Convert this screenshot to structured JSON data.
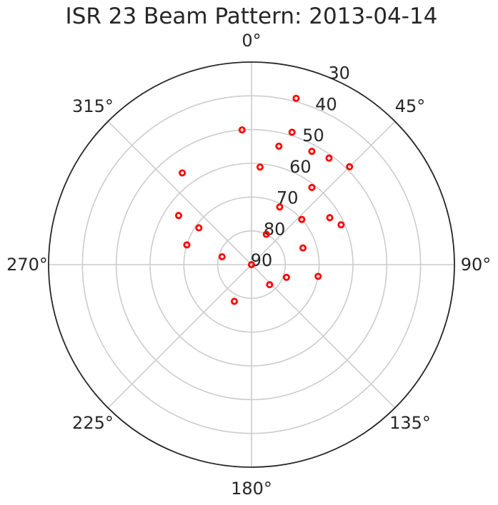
{
  "chart_data": {
    "type": "scatter",
    "projection": "polar",
    "title": "ISR 23 Beam Pattern: 2013-04-14",
    "theta_direction": "clockwise",
    "theta_zero": "top",
    "radial_axis": "elevation (90 at center, 30 at edge)",
    "rlim": [
      90,
      30
    ],
    "theta_ticks": [
      "0°",
      "45°",
      "90°",
      "135°",
      "180°",
      "225°",
      "270°",
      "315°"
    ],
    "r_ticks": [
      "30",
      "40",
      "50",
      "60",
      "70",
      "80",
      "90"
    ],
    "r_tick_values": [
      30,
      40,
      50,
      60,
      70,
      80,
      90
    ],
    "grid": true,
    "marker": "hollow circle",
    "marker_color": "#ff0000",
    "series": [
      {
        "points": [
          {
            "az": 0,
            "el": 90
          },
          {
            "az": 15,
            "el": 39
          },
          {
            "az": 17,
            "el": 49
          },
          {
            "az": 13,
            "el": 54
          },
          {
            "az": 28,
            "el": 52
          },
          {
            "az": 36,
            "el": 51
          },
          {
            "az": 45,
            "el": 49
          },
          {
            "az": 38,
            "el": 61
          },
          {
            "az": 59,
            "el": 63
          },
          {
            "az": 66,
            "el": 61
          },
          {
            "az": 48,
            "el": 70
          },
          {
            "az": 26,
            "el": 71
          },
          {
            "az": 5,
            "el": 61
          },
          {
            "az": -4,
            "el": 50
          },
          {
            "az": -37,
            "el": 56
          },
          {
            "az": -56,
            "el": 64
          },
          {
            "az": -55,
            "el": 71
          },
          {
            "az": -73,
            "el": 70
          },
          {
            "az": 72,
            "el": 74
          },
          {
            "az": 100,
            "el": 70
          },
          {
            "az": 26,
            "el": 80
          },
          {
            "az": 110,
            "el": 79
          },
          {
            "az": 138,
            "el": 82
          },
          {
            "az": -75,
            "el": 81
          },
          {
            "az": 205,
            "el": 78
          }
        ]
      }
    ]
  }
}
